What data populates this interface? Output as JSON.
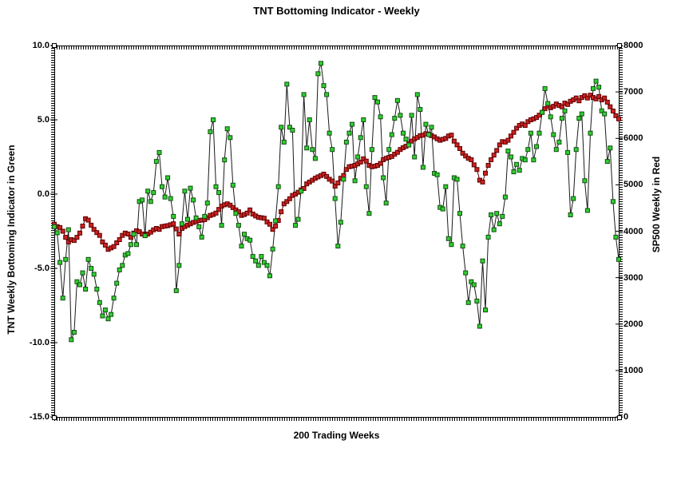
{
  "title": "TNT Bottoming Indicator - Weekly",
  "chart_data": {
    "type": "line",
    "title": "TNT Bottoming Indicator - Weekly",
    "xlabel": "200 Trading Weeks",
    "ylabel_left": "TNT Weekly Bottoming Indicator in Green",
    "ylabel_right": "SP500 Weekly in Red",
    "x_points": 200,
    "grid": false,
    "legend_position": "none",
    "left_axis": {
      "min": -15,
      "max": 10,
      "ticks": [
        {
          "label": "10.0",
          "value": 10
        },
        {
          "label": "5.0",
          "value": 5
        },
        {
          "label": "0.0",
          "value": 0
        },
        {
          "label": "-5.0",
          "value": -5
        },
        {
          "label": "-10.0",
          "value": -10
        },
        {
          "label": "-15.0",
          "value": -15
        }
      ]
    },
    "right_axis": {
      "min": 0,
      "max": 8000,
      "ticks": [
        {
          "label": "8000",
          "value": 8000
        },
        {
          "label": "7000",
          "value": 7000
        },
        {
          "label": "6000",
          "value": 6000
        },
        {
          "label": "5000",
          "value": 5000
        },
        {
          "label": "4000",
          "value": 4000
        },
        {
          "label": "3000",
          "value": 3000
        },
        {
          "label": "2000",
          "value": 2000
        },
        {
          "label": "1000",
          "value": 1000
        },
        {
          "label": "0",
          "value": 0
        }
      ]
    },
    "series": [
      {
        "name": "TNT Weekly Bottoming Indicator",
        "axis": "left",
        "marker": "square",
        "marker_fill": "#2fd02f",
        "marker_border": "#124d12",
        "line_color": "#1a1a1a",
        "values": [
          -2.2,
          -2.6,
          -4.6,
          -7.0,
          -4.4,
          -2.4,
          -9.8,
          -9.3,
          -5.9,
          -6.1,
          -5.3,
          -6.4,
          -4.4,
          -5.0,
          -5.4,
          -6.4,
          -7.3,
          -8.2,
          -7.8,
          -8.4,
          -8.1,
          -7.0,
          -6.0,
          -5.1,
          -4.8,
          -4.1,
          -4.0,
          -3.4,
          -2.7,
          -3.4,
          -0.5,
          -0.4,
          -2.8,
          0.2,
          -0.5,
          0.1,
          2.2,
          2.8,
          0.5,
          -0.2,
          1.1,
          -0.3,
          -1.5,
          -6.5,
          -4.8,
          -2.0,
          0.2,
          -1.7,
          0.4,
          -0.4,
          -1.6,
          -2.2,
          -2.9,
          -1.5,
          -0.6,
          4.2,
          5.0,
          0.5,
          0.1,
          -2.1,
          2.3,
          4.4,
          3.8,
          0.6,
          -1.3,
          -2.1,
          -3.5,
          -2.7,
          -3.0,
          -3.1,
          -4.2,
          -4.5,
          -4.8,
          -4.2,
          -4.6,
          -4.8,
          -5.5,
          -3.7,
          -1.8,
          0.5,
          4.5,
          3.5,
          7.4,
          4.5,
          4.3,
          -2.1,
          -1.7,
          0.2,
          6.7,
          3.1,
          5.0,
          3.0,
          2.4,
          8.1,
          8.8,
          7.3,
          6.7,
          4.1,
          3.0,
          -0.3,
          -3.5,
          -1.9,
          1.0,
          3.5,
          4.1,
          4.7,
          0.9,
          2.5,
          3.8,
          5.0,
          0.5,
          -1.3,
          3.0,
          6.5,
          6.2,
          5.2,
          1.1,
          -0.6,
          3.0,
          4.0,
          5.1,
          6.3,
          5.3,
          4.1,
          3.7,
          3.3,
          5.3,
          2.5,
          6.7,
          5.7,
          1.8,
          4.7,
          4.0,
          4.5,
          1.4,
          1.3,
          -0.9,
          -1.0,
          0.5,
          -3.0,
          -3.4,
          1.1,
          1.0,
          -1.3,
          -3.5,
          -5.3,
          -7.3,
          -5.9,
          -6.1,
          -7.2,
          -8.9,
          -4.5,
          -7.8,
          -2.9,
          -1.4,
          -2.4,
          -1.3,
          -2.0,
          -1.5,
          -0.2,
          2.9,
          2.5,
          1.5,
          2.0,
          1.6,
          2.4,
          2.3,
          3.0,
          4.1,
          2.3,
          3.2,
          4.1,
          5.5,
          7.1,
          6.1,
          5.2,
          4.0,
          3.0,
          3.5,
          5.1,
          5.6,
          2.8,
          -1.4,
          -0.3,
          3.0,
          5.1,
          5.4,
          0.9,
          -1.1,
          4.1,
          7.1,
          7.6,
          7.2,
          5.6,
          5.4,
          2.2,
          3.1,
          -0.5,
          -2.9,
          -4.4
        ]
      },
      {
        "name": "SP500 Weekly",
        "axis": "right",
        "marker": "square",
        "marker_fill": "#cc2222",
        "marker_border": "#5c0000",
        "line_color": "#5c0000",
        "values": [
          4150,
          4100,
          4080,
          4000,
          3870,
          3770,
          3820,
          3800,
          3870,
          3960,
          4110,
          4270,
          4240,
          4130,
          4040,
          3970,
          3910,
          3770,
          3700,
          3610,
          3640,
          3670,
          3750,
          3820,
          3910,
          3960,
          3940,
          3870,
          3960,
          4010,
          3990,
          3940,
          3910,
          3940,
          3980,
          4030,
          4060,
          4040,
          4100,
          4110,
          4120,
          4140,
          4160,
          4050,
          3940,
          4060,
          4100,
          4130,
          4160,
          4190,
          4210,
          4230,
          4240,
          4250,
          4290,
          4340,
          4360,
          4390,
          4470,
          4540,
          4570,
          4590,
          4560,
          4510,
          4460,
          4420,
          4340,
          4360,
          4390,
          4460,
          4370,
          4330,
          4300,
          4290,
          4280,
          4200,
          4150,
          4040,
          4110,
          4230,
          4420,
          4590,
          4640,
          4700,
          4770,
          4800,
          4840,
          4890,
          4920,
          5020,
          5060,
          5100,
          5140,
          5170,
          5200,
          5230,
          5180,
          5120,
          5080,
          4970,
          5040,
          5140,
          5200,
          5330,
          5390,
          5400,
          5420,
          5450,
          5490,
          5560,
          5510,
          5420,
          5390,
          5400,
          5420,
          5460,
          5540,
          5570,
          5590,
          5610,
          5660,
          5700,
          5760,
          5800,
          5830,
          5880,
          5940,
          5990,
          6020,
          6060,
          6070,
          6100,
          6090,
          6060,
          6030,
          5990,
          5960,
          5980,
          6000,
          6050,
          6070,
          5940,
          5860,
          5780,
          5680,
          5620,
          5570,
          5540,
          5430,
          5330,
          5100,
          5060,
          5250,
          5420,
          5540,
          5640,
          5740,
          5860,
          5930,
          5920,
          5960,
          6050,
          6130,
          6220,
          6280,
          6310,
          6280,
          6360,
          6400,
          6420,
          6450,
          6500,
          6560,
          6640,
          6700,
          6660,
          6690,
          6740,
          6710,
          6680,
          6760,
          6730,
          6800,
          6830,
          6870,
          6810,
          6880,
          6920,
          6870,
          6930,
          6880,
          6850,
          6900,
          6830,
          6870,
          6780,
          6680,
          6590,
          6490,
          6420
        ]
      }
    ]
  }
}
